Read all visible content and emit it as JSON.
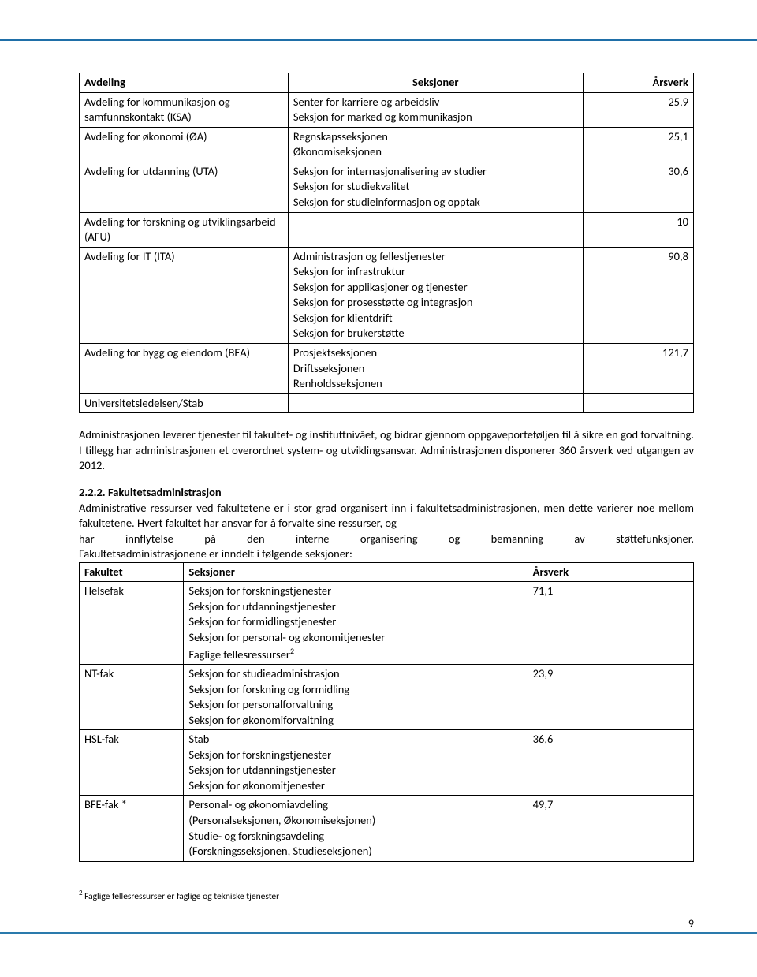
{
  "table1": {
    "headers": [
      "Avdeling",
      "Seksjoner",
      "Årsverk"
    ],
    "rows": [
      {
        "c1": "Avdeling for kommunikasjon og samfunnskontakt (KSA)",
        "c2": "Senter for karriere og arbeidsliv\nSeksjon for marked og kommunikasjon",
        "c3": "25,9"
      },
      {
        "c1": "Avdeling for økonomi (ØA)",
        "c2": "Regnskapsseksjonen\nØkonomiseksjonen",
        "c3": "25,1"
      },
      {
        "c1": "Avdeling for utdanning (UTA)",
        "c2": "Seksjon for internasjonalisering av studier\nSeksjon for studiekvalitet\nSeksjon for studieinformasjon og opptak",
        "c3": "30,6"
      },
      {
        "c1": "Avdeling for forskning og utviklingsarbeid (AFU)",
        "c2": "",
        "c3": "10"
      },
      {
        "c1": "Avdeling for IT (ITA)",
        "c2": "Administrasjon og fellestjenester\nSeksjon for infrastruktur\nSeksjon for applikasjoner og tjenester\nSeksjon for prosesstøtte og integrasjon\nSeksjon for klientdrift\nSeksjon for brukerstøtte",
        "c3": "90,8"
      },
      {
        "c1": "Avdeling for bygg og eiendom (BEA)",
        "c2": "Prosjektseksjonen\nDriftsseksjonen\nRenholdsseksjonen",
        "c3": "121,7"
      },
      {
        "c1": "Universitetsledelsen/Stab",
        "c2": "",
        "c3": ""
      }
    ]
  },
  "para1": "Administrasjonen leverer tjenester til fakultet- og instituttnivået, og bidrar gjennom oppgaveporteføljen til å sikre en god forvaltning. I tillegg har administrasjonen et overordnet system- og utviklingsansvar. Administrasjonen disponerer 360 årsverk ved utgangen av 2012.",
  "heading": "2.2.2. Fakultetsadministrasjon",
  "para2a": "Administrative ressurser ved fakultetene er i stor grad organisert inn i fakultetsadministrasjonen, men dette varierer noe mellom fakultetene. Hvert fakultet har ansvar for å forvalte sine ressurser, og",
  "para2b": "har innflytelse på den interne organisering og bemanning av støttefunksjoner.",
  "para2c": "Fakultetsadministrasjonene er inndelt i følgende seksjoner:",
  "table2": {
    "headers": [
      "Fakultet",
      "Seksjoner",
      "Årsverk"
    ],
    "rows": [
      {
        "c1": "Helsefak",
        "c2": "Seksjon for forskningstjenester\nSeksjon for utdanningstjenester\nSeksjon for formidlingstjenester\nSeksjon for personal- og økonomitjenester\nFaglige fellesressurser",
        "c3": "71,1",
        "fn": "2"
      },
      {
        "c1": "NT-fak",
        "c2": "Seksjon for studieadministrasjon\nSeksjon for forskning og formidling\nSeksjon for personalforvaltning\nSeksjon for økonomiforvaltning",
        "c3": "23,9"
      },
      {
        "c1": "HSL-fak",
        "c2": "Stab\nSeksjon for forskningstjenester\nSeksjon for utdanningstjenester\nSeksjon for økonomitjenester",
        "c3": "36,6"
      },
      {
        "c1": "BFE-fak *",
        "c2": "Personal- og økonomiavdeling\n(Personalseksjonen, Økonomiseksjonen)\nStudie- og forskningsavdeling\n(Forskningsseksjonen, Studieseksjonen)",
        "c3": "49,7"
      }
    ]
  },
  "footnote": {
    "num": "2",
    "text": " Faglige fellesressurser er faglige og tekniske tjenester"
  },
  "pageNum": "9"
}
